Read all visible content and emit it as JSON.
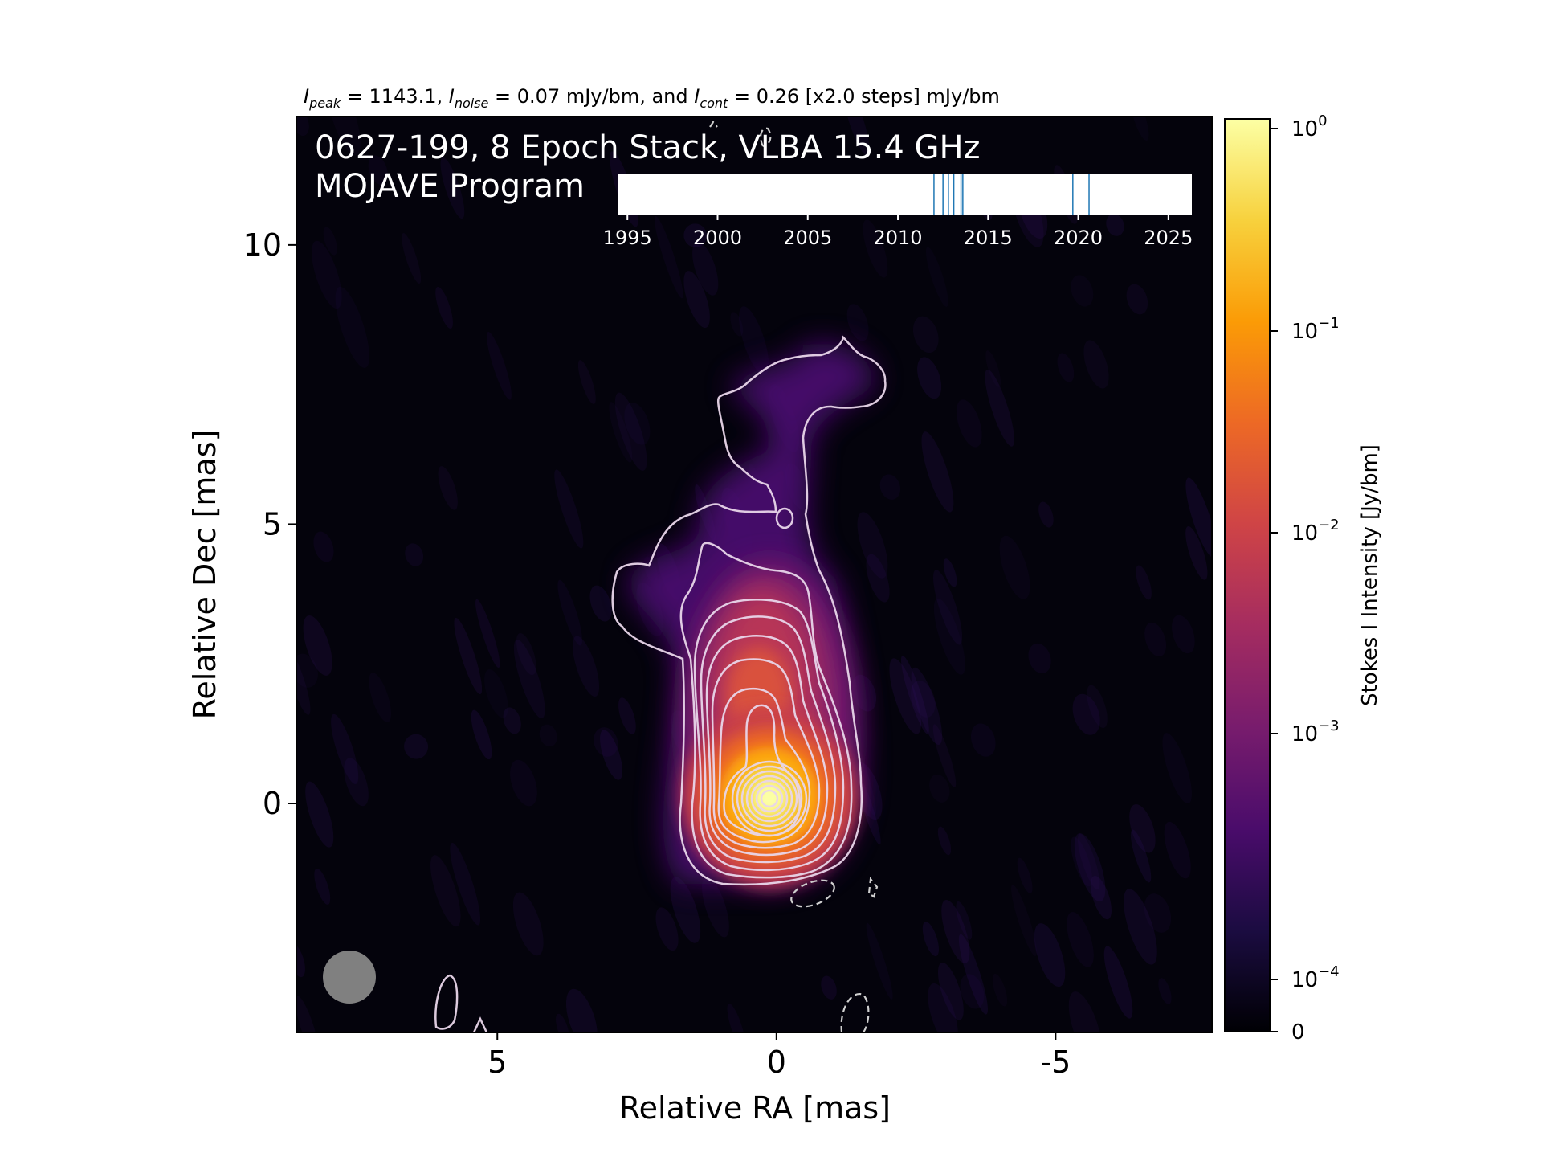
{
  "chart_data": {
    "type": "heatmap",
    "header": {
      "peak_sym": "I",
      "peak_sub": "peak",
      "peak_val": " = 1143.1, ",
      "noise_sym": "I",
      "noise_sub": "noise",
      "noise_val": " = 0.07 mJy/bm, and ",
      "cont_sym": "I",
      "cont_sub": "cont",
      "cont_val": " = 0.26 [x2.0 steps] mJy/bm"
    },
    "title_line1": "0627-199, 8 Epoch Stack, VLBA 15.4 GHz",
    "title_line2": "MOJAVE Program",
    "xlabel": "Relative RA [mas]",
    "ylabel": "Relative Dec [mas]",
    "xlim": [
      8.6,
      -7.8
    ],
    "ylim": [
      -4.1,
      12.3
    ],
    "xticks": [
      5,
      0,
      -5
    ],
    "xticklabels": [
      "5",
      "0",
      "-5"
    ],
    "yticks": [
      0,
      5,
      10
    ],
    "yticklabels": [
      "0",
      "5",
      "10"
    ],
    "colorbar": {
      "label": "Stokes I Intensity [Jy/bm]",
      "ticks": [
        {
          "base": "10",
          "exp": "0"
        },
        {
          "base": "10",
          "exp": "−1"
        },
        {
          "base": "10",
          "exp": "−2"
        },
        {
          "base": "10",
          "exp": "−3"
        },
        {
          "base": "10",
          "exp": "−4"
        },
        {
          "base": "0",
          "exp": ""
        }
      ],
      "colors": [
        "#000004",
        "#1b0c41",
        "#4a0c6b",
        "#781c6d",
        "#a52c60",
        "#cf4446",
        "#ed6925",
        "#fb9b06",
        "#f7d13d",
        "#fcffa4"
      ]
    },
    "epoch_timeline": {
      "xlim": [
        1994.5,
        2026.3
      ],
      "ticks": [
        1995,
        2000,
        2005,
        2010,
        2015,
        2020,
        2025
      ],
      "ticklabels": [
        "1995",
        "2000",
        "2005",
        "2010",
        "2015",
        "2020",
        "2025"
      ],
      "epochs": [
        2012.0,
        2012.5,
        2012.8,
        2013.1,
        2013.5,
        2013.6,
        2019.7,
        2020.6
      ],
      "line_color": "#1f77b4"
    },
    "source": {
      "core_ra": 0.0,
      "core_dec": 0.0,
      "jet_ridge": [
        [
          0.0,
          0.0
        ],
        [
          0.2,
          2.0
        ],
        [
          0.4,
          3.6
        ],
        [
          0.8,
          5.2
        ],
        [
          0.9,
          6.5
        ],
        [
          -0.6,
          7.6
        ]
      ]
    },
    "beam": {
      "major_mas": 0.95,
      "minor_mas": 0.95,
      "pa_deg": 0,
      "color": "#808080"
    }
  }
}
